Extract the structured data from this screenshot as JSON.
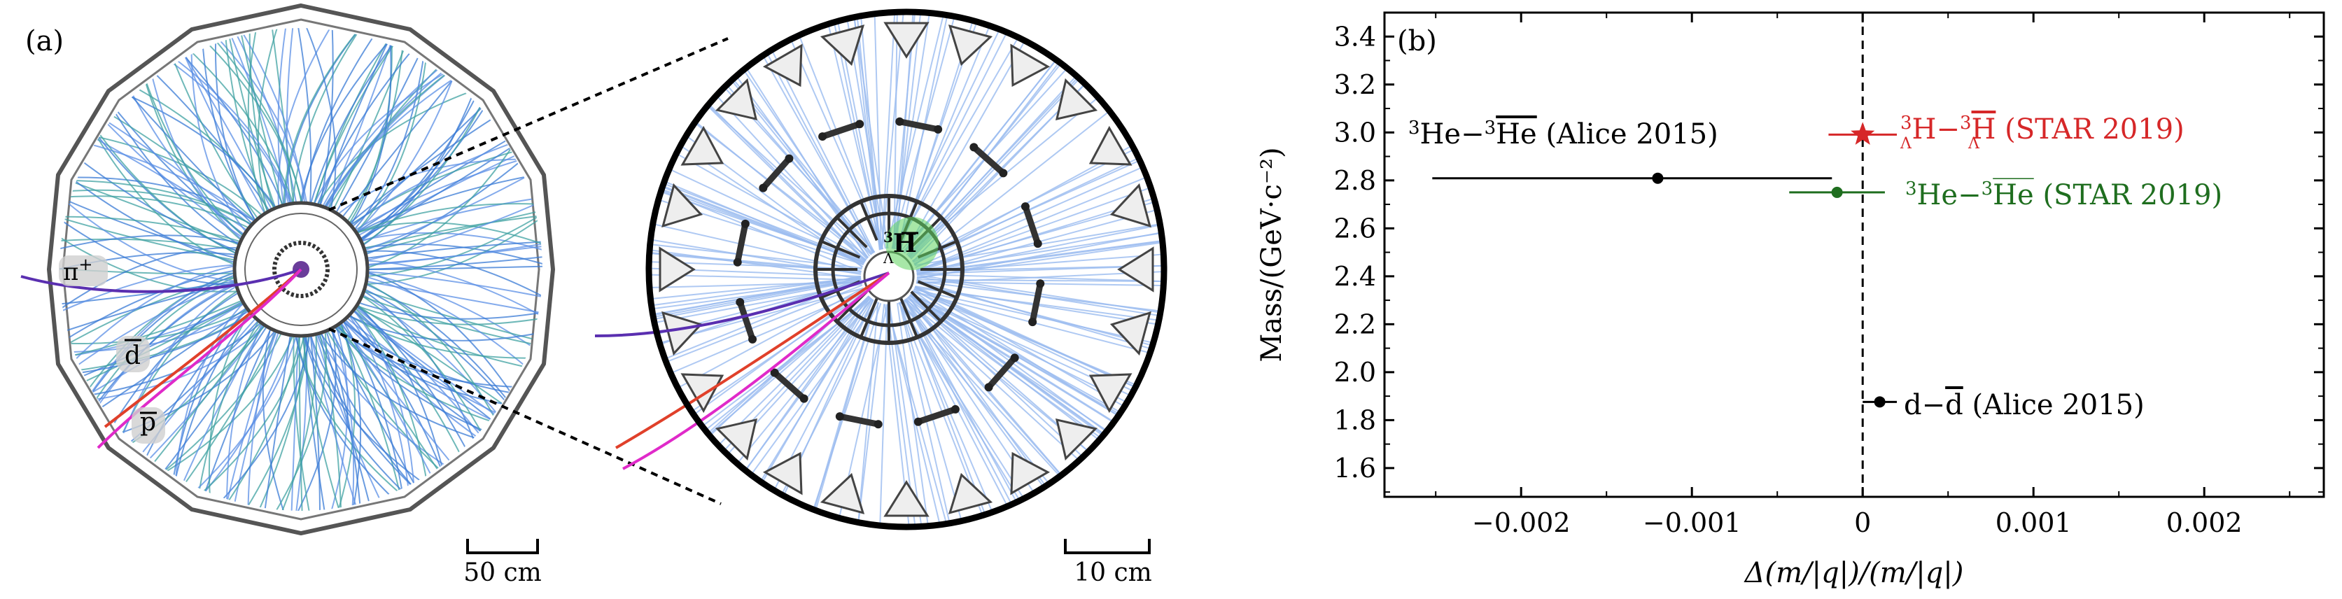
{
  "panels": {
    "a": {
      "label": "(a)",
      "particles": {
        "pi": "π",
        "pi_sup": "+",
        "dbar": "d",
        "pbar": "p"
      },
      "inset_label": {
        "sup": "3",
        "sub": "Λ",
        "main": "H"
      },
      "scale_left": "50 cm",
      "scale_right": "10 cm"
    }
  },
  "colors": {
    "alice": "#000000",
    "star_hyper": "#d62728",
    "star_he3": "#1f6e1f",
    "tracks": "#3a7bd5",
    "tracks_light": "#9bbcf0"
  },
  "chart_data": {
    "type": "scatter",
    "panel_label": "(b)",
    "xlabel": "Δ(m/|q|)/(m/|q|)",
    "ylabel": "Mass/(GeV·c⁻²)",
    "xlim": [
      -0.0028,
      0.0027
    ],
    "ylim": [
      1.48,
      3.5
    ],
    "xticks": [
      -0.002,
      -0.001,
      0,
      0.001,
      0.002
    ],
    "xtick_labels": [
      "−0.002",
      "−0.001",
      "0",
      "0.001",
      "0.002"
    ],
    "yticks": [
      1.6,
      1.8,
      2.0,
      2.2,
      2.4,
      2.6,
      2.8,
      3.0,
      3.2,
      3.4
    ],
    "ytick_labels": [
      "1.6",
      "1.8",
      "2.0",
      "2.2",
      "2.4",
      "2.6",
      "2.8",
      "3.0",
      "3.2",
      "3.4"
    ],
    "grid": false,
    "reference_line_x": 0,
    "series": [
      {
        "label": "³He−³H̄e (Alice 2015)",
        "x": -0.0012,
        "xerr_low": 0.00132,
        "xerr_high": 0.00102,
        "y": 2.809,
        "marker": "circle",
        "color": "#000000"
      },
      {
        "label": "ΛH−ΛH̄ (STAR 2019)",
        "x": 0.0,
        "xerr_low": 0.0002,
        "xerr_high": 0.0002,
        "y": 2.991,
        "marker": "star",
        "color": "#d62728"
      },
      {
        "label": "³He−³H̄e (STAR 2019)",
        "x": -0.00015,
        "xerr_low": 0.00028,
        "xerr_high": 0.00028,
        "y": 2.75,
        "marker": "circle",
        "color": "#1f6e1f"
      },
      {
        "label": "d−d̄ (Alice 2015)",
        "x": 0.0001,
        "xerr_low": 0.0001,
        "xerr_high": 0.0001,
        "y": 1.876,
        "marker": "circle",
        "color": "#000000"
      }
    ],
    "annotations": {
      "alice_he3": {
        "sup1": "3",
        "a": "He",
        "dash": "−",
        "sup2": "3",
        "b": "He",
        "tail": " (Alice 2015)"
      },
      "star_hyper": {
        "sup1": "3",
        "sub1": "Λ",
        "a": "H",
        "dash": "−",
        "sup2": "3",
        "sub2": "Λ",
        "b": "H",
        "tail": " (STAR 2019)"
      },
      "star_he3": {
        "sup1": "3",
        "a": "He",
        "dash": "−",
        "sup2": "3",
        "b": "He",
        "tail": " (STAR 2019)"
      },
      "alice_d": {
        "a": "d",
        "dash": "−",
        "b": "d",
        "tail": " (Alice 2015)"
      }
    }
  }
}
